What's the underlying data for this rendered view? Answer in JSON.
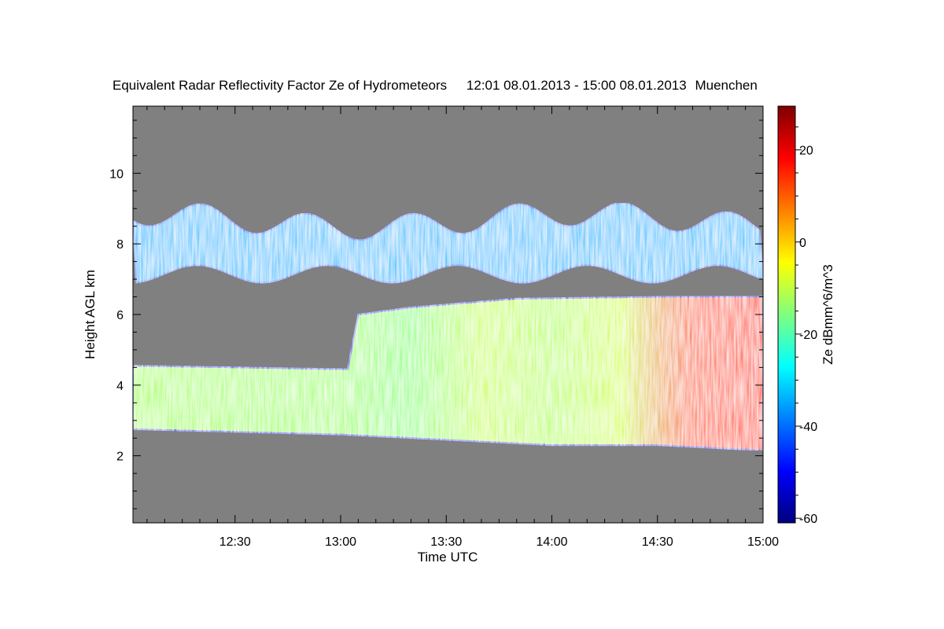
{
  "chart_data": {
    "type": "heatmap",
    "title": "Equivalent Radar Reflectivity Factor Ze of Hydrometeors",
    "time_range": "12:01 08.01.2013 - 15:00 08.01.2013",
    "location": "Muenchen",
    "xlabel": "Time UTC",
    "ylabel": "Height AGL km",
    "colorbar_label": "Ze dBmm^6/m^3",
    "x_tick_labels": [
      "12:30",
      "13:00",
      "13:30",
      "14:00",
      "14:30",
      "15:00"
    ],
    "x_ticks_minutes": [
      750,
      780,
      810,
      840,
      870,
      900
    ],
    "xlim_minutes": [
      721,
      900
    ],
    "y_tick_labels": [
      "2",
      "4",
      "6",
      "8",
      "10"
    ],
    "y_ticks": [
      2,
      4,
      6,
      8,
      10
    ],
    "ylim": [
      0.1,
      11.9
    ],
    "colorbar_tick_labels": [
      "20",
      "0",
      "-20",
      "-40",
      "-60"
    ],
    "colorbar_ticks": [
      20,
      0,
      -20,
      -40,
      -60
    ],
    "colorbar_range": [
      -61,
      29.5
    ],
    "background_color": "#808080",
    "colormap": [
      "#00007f",
      "#0000ff",
      "#007fff",
      "#00ffff",
      "#7fff7f",
      "#ffff00",
      "#ff7f00",
      "#ff0000",
      "#7f0000"
    ],
    "layers": [
      {
        "name": "lower-precipitation-layer",
        "top_profile_time_min": [
          721,
          782,
          785,
          800,
          830,
          870,
          900
        ],
        "top_profile_height_km": [
          4.55,
          4.45,
          6.0,
          6.2,
          6.45,
          6.5,
          6.5
        ],
        "base_profile_time_min": [
          721,
          780,
          810,
          840,
          870,
          900
        ],
        "base_profile_height_km": [
          2.75,
          2.6,
          2.45,
          2.3,
          2.3,
          2.15
        ],
        "ze_profile_time_min": [
          721,
          780,
          800,
          820,
          840,
          860,
          880,
          900
        ],
        "ze_profile_dbz": [
          -12,
          -13,
          -15,
          -9,
          -11,
          -8,
          10,
          13
        ]
      },
      {
        "name": "upper-cirrus-layer",
        "height_range_km": [
          6.9,
          9.0
        ],
        "ze_range_dbz": [
          -40,
          -25
        ]
      }
    ]
  }
}
